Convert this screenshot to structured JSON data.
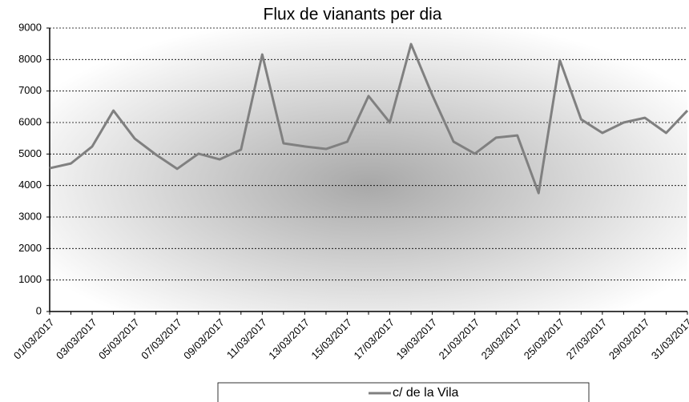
{
  "chart_data": {
    "type": "line",
    "title": "Flux de vianants per dia",
    "categories": [
      "01/03/2017",
      null,
      "03/03/2017",
      null,
      "05/03/2017",
      null,
      "07/03/2017",
      null,
      "09/03/2017",
      null,
      "11/03/2017",
      null,
      "13/03/2017",
      null,
      "15/03/2017",
      null,
      "17/03/2017",
      null,
      "19/03/2017",
      null,
      "21/03/2017",
      null,
      "23/03/2017",
      null,
      "25/03/2017",
      null,
      "27/03/2017",
      null,
      "29/03/2017",
      null,
      "31/03/2017"
    ],
    "series": [
      {
        "name": "c/ de la Vila",
        "color": "#808080",
        "values": [
          4550,
          4700,
          5240,
          6380,
          5490,
          4980,
          4530,
          5010,
          4830,
          5140,
          8160,
          5340,
          5240,
          5160,
          5390,
          6840,
          6000,
          8490,
          6870,
          5390,
          5010,
          5520,
          5590,
          3760,
          7980,
          6100,
          5670,
          6000,
          6150,
          5670,
          6380
        ]
      }
    ],
    "ylim": [
      0,
      9000
    ],
    "yticks": [
      0,
      1000,
      2000,
      3000,
      4000,
      5000,
      6000,
      7000,
      8000,
      9000
    ],
    "grid": true,
    "legend": "bottom"
  }
}
